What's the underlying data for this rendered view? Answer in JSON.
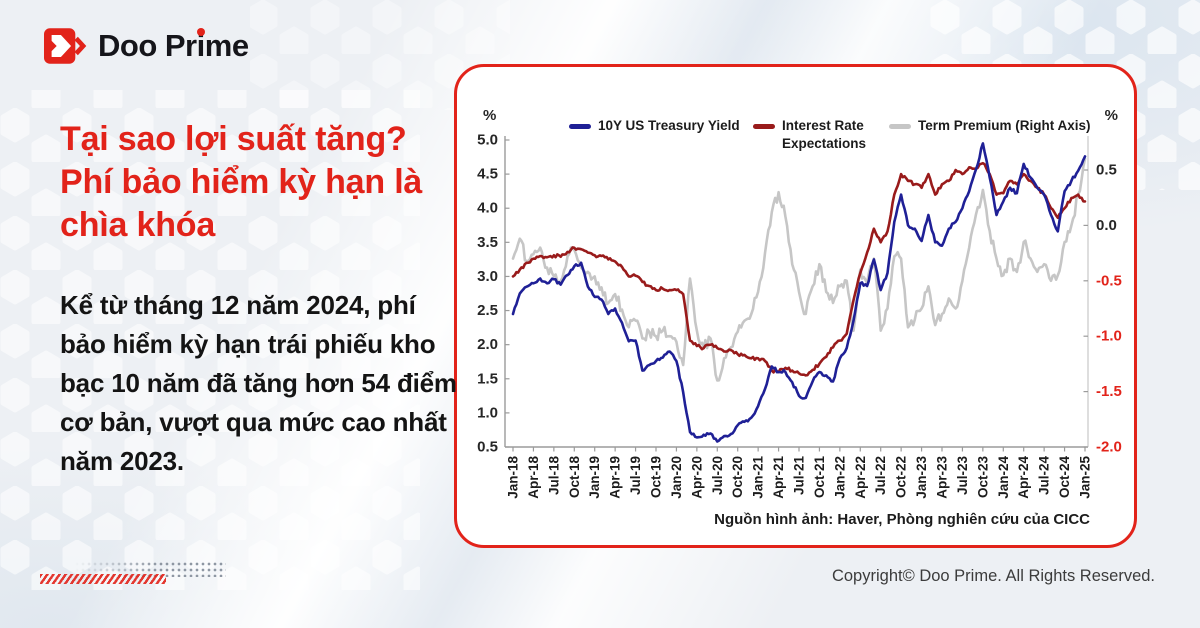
{
  "page": {
    "accent_color": "#e2231a",
    "background_color": "#edf0f4"
  },
  "logo": {
    "brand_full": "Doo Prime",
    "text_before_i": "Doo Pr",
    "i_letter": "i",
    "text_after_i": "me"
  },
  "headline": {
    "line1": "Tại sao lợi suất tăng?",
    "line2": "Phí bảo hiểm kỳ hạn là chìa khóa"
  },
  "body_text": "Kể từ tháng 12 năm 2024, phí bảo hiểm kỳ hạn trái phiếu kho bạc 10 năm đã tăng hơn 54 điểm cơ bản, vượt qua mức cao nhất năm 2023.",
  "footer": {
    "copyright": "Copyright© Doo Prime. All Rights Reserved."
  },
  "chart_data": {
    "type": "line",
    "unit_left": "%",
    "unit_right": "%",
    "source_note": "Nguồn hình ảnh: Haver, Phòng nghiên cứu của CICC",
    "x_tick_labels": [
      "Jan-18",
      "Apr-18",
      "Jul-18",
      "Oct-18",
      "Jan-19",
      "Apr-19",
      "Jul-19",
      "Oct-19",
      "Jan-20",
      "Apr-20",
      "Jul-20",
      "Oct-20",
      "Jan-21",
      "Apr-21",
      "Jul-21",
      "Oct-21",
      "Jan-22",
      "Apr-22",
      "Jul-22",
      "Oct-22",
      "Jan-23",
      "Apr-23",
      "Jul-23",
      "Oct-23",
      "Jan-24",
      "Apr-24",
      "Jul-24",
      "Oct-24",
      "Jan-25"
    ],
    "x_resolution": "monthly, Jan-2018 to Jan-2025",
    "left_axis": {
      "min": 0.5,
      "max": 5.0,
      "tick_labels": [
        "5.0",
        "4.5",
        "4.0",
        "3.5",
        "3.0",
        "2.5",
        "2.0",
        "1.5",
        "1.0",
        "0.5"
      ]
    },
    "right_axis": {
      "min": -2.0,
      "max": 0.5,
      "tick_labels": [
        "0.5",
        "0.0",
        "-0.5",
        "-1.0",
        "-1.5",
        "-2.0"
      ],
      "negative_label_color": "#e2231a"
    },
    "series": [
      {
        "name": "10Y US Treasury Yield",
        "axis": "left",
        "color": "#1f2096",
        "values": [
          2.45,
          2.75,
          2.85,
          2.9,
          2.97,
          2.9,
          2.96,
          2.88,
          3.02,
          3.15,
          3.2,
          2.85,
          2.7,
          2.66,
          2.45,
          2.53,
          2.32,
          2.05,
          2.06,
          1.62,
          1.7,
          1.76,
          1.81,
          1.9,
          1.76,
          1.3,
          0.72,
          0.64,
          0.68,
          0.7,
          0.58,
          0.66,
          0.69,
          0.82,
          0.87,
          0.93,
          1.1,
          1.35,
          1.68,
          1.6,
          1.6,
          1.45,
          1.25,
          1.22,
          1.46,
          1.6,
          1.55,
          1.46,
          1.8,
          1.95,
          2.35,
          2.9,
          2.86,
          3.25,
          2.8,
          3.05,
          3.8,
          4.2,
          3.75,
          3.7,
          3.52,
          3.9,
          3.5,
          3.45,
          3.7,
          3.8,
          4.0,
          4.25,
          4.57,
          4.95,
          4.45,
          3.9,
          4.1,
          4.3,
          4.22,
          4.65,
          4.45,
          4.3,
          4.2,
          3.9,
          3.66,
          4.25,
          4.4,
          4.55,
          4.76
        ]
      },
      {
        "name": "Interest Rate Expectations",
        "axis": "left",
        "color": "#991b1b",
        "values": [
          3.0,
          3.1,
          3.2,
          3.26,
          3.3,
          3.28,
          3.31,
          3.29,
          3.36,
          3.42,
          3.4,
          3.35,
          3.31,
          3.3,
          3.25,
          3.22,
          3.14,
          3.0,
          3.01,
          2.92,
          2.86,
          2.8,
          2.82,
          2.8,
          2.8,
          2.74,
          2.06,
          1.98,
          1.95,
          2.0,
          1.95,
          1.9,
          1.92,
          1.86,
          1.85,
          1.8,
          1.8,
          1.76,
          1.62,
          1.6,
          1.66,
          1.62,
          1.58,
          1.55,
          1.63,
          1.72,
          1.82,
          1.96,
          2.06,
          2.16,
          2.65,
          3.05,
          3.35,
          3.7,
          3.5,
          3.66,
          4.2,
          4.5,
          4.4,
          4.35,
          4.3,
          4.5,
          4.2,
          4.35,
          4.4,
          4.56,
          4.5,
          4.6,
          4.58,
          4.66,
          4.5,
          4.2,
          4.22,
          4.4,
          4.35,
          4.5,
          4.4,
          4.3,
          4.2,
          4.0,
          3.86,
          4.0,
          4.15,
          4.2,
          4.1
        ]
      },
      {
        "name": "Term Premium (Right Axis)",
        "axis": "right",
        "color": "#c6c6c6",
        "values": [
          -0.3,
          -0.12,
          -0.32,
          -0.26,
          -0.2,
          -0.38,
          -0.46,
          -0.5,
          -0.28,
          -0.22,
          -0.38,
          -0.42,
          -0.46,
          -0.56,
          -0.7,
          -0.62,
          -0.76,
          -0.92,
          -0.86,
          -1.02,
          -0.96,
          -1.0,
          -0.95,
          -1.0,
          -1.05,
          -1.26,
          -0.48,
          -0.95,
          -1.1,
          -1.02,
          -1.4,
          -1.2,
          -1.1,
          -0.96,
          -0.86,
          -0.8,
          -0.6,
          -0.25,
          0.12,
          0.3,
          0.08,
          -0.35,
          -0.6,
          -0.8,
          -0.55,
          -0.35,
          -0.6,
          -0.7,
          -0.55,
          -0.5,
          -0.95,
          -0.4,
          -0.52,
          -0.3,
          -0.95,
          -0.75,
          -0.28,
          -0.3,
          -0.92,
          -0.85,
          -0.75,
          -0.55,
          -0.9,
          -0.8,
          -0.66,
          -0.75,
          -0.5,
          -0.2,
          0.1,
          0.32,
          -0.05,
          -0.3,
          -0.45,
          -0.3,
          -0.42,
          -0.15,
          -0.3,
          -0.42,
          -0.35,
          -0.5,
          -0.45,
          -0.15,
          0.0,
          0.28,
          0.6
        ]
      }
    ]
  }
}
